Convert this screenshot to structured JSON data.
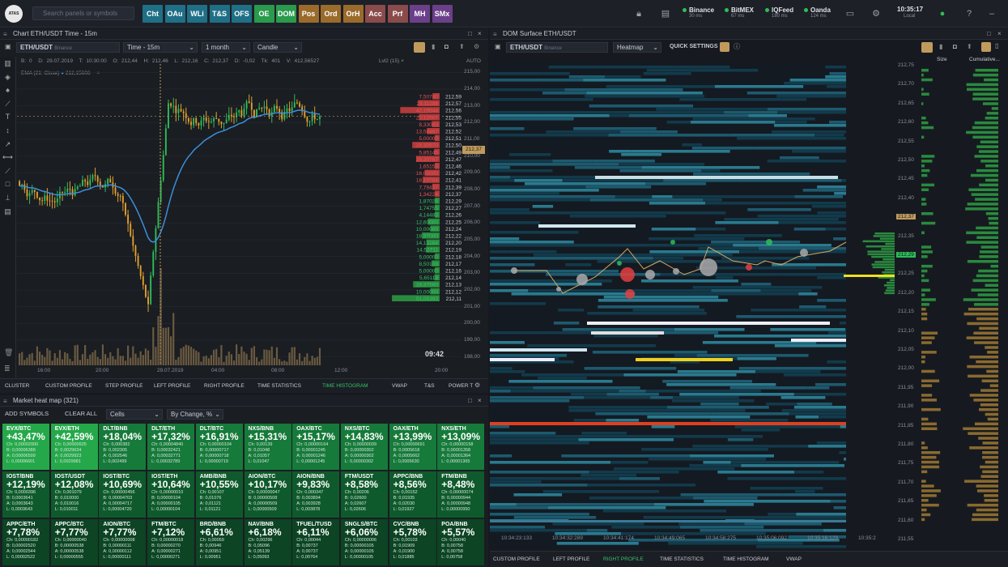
{
  "topbar": {
    "logo": "ATAS",
    "search_placeholder": "Search panels or symbols",
    "workspace_buttons": [
      {
        "label": "Cht",
        "color": "#1f6f86"
      },
      {
        "label": "OAu",
        "color": "#1f6f86"
      },
      {
        "label": "WLi",
        "color": "#1f6f86"
      },
      {
        "label": "T&S",
        "color": "#1f6f86"
      },
      {
        "label": "OFS",
        "color": "#1f6f86"
      },
      {
        "label": "OE",
        "color": "#2a9a4c"
      },
      {
        "label": "DOM",
        "color": "#2a9a4c"
      },
      {
        "label": "Pos",
        "color": "#9a6b2a"
      },
      {
        "label": "Ord",
        "color": "#9a6b2a"
      },
      {
        "label": "OrH",
        "color": "#9a6b2a"
      },
      {
        "label": "Acc",
        "color": "#8a4b4b"
      },
      {
        "label": "Prf",
        "color": "#8a4b4b"
      },
      {
        "label": "MH",
        "color": "#6b3f8a"
      },
      {
        "label": "SMx",
        "color": "#6b3f8a"
      }
    ],
    "feeds": [
      {
        "name": "Binance",
        "ping": "30 ms"
      },
      {
        "name": "BitMEX",
        "ping": "67 ms"
      },
      {
        "name": "IQFeed",
        "ping": "180 ms"
      },
      {
        "name": "Oanda",
        "ping": "124 ms"
      }
    ],
    "time": "10:35:17",
    "time_label": "Local"
  },
  "chart": {
    "title": "Chart ETH/USDT Time - 15m",
    "symbol": "ETH/USDT",
    "exchange": "Binance",
    "timeframe": "Time - 15m",
    "period": "1 month",
    "chart_type": "Candle",
    "ohlc": {
      "b": "B: 0",
      "date": "D: 29.07.2019",
      "time": "T: 10:30:00",
      "o": "O: 212,44",
      "h": "H: 212,46",
      "l": "L: 212,16",
      "c": "C: 212,37",
      "d": "D: -0,02",
      "tk": "Tk: 401",
      "v": "V: 412,56527"
    },
    "ema_label": "EMA (21: Close)",
    "ema_value": "212,15606",
    "lvl_label": "Lvl2 (15)",
    "auto": "AUTO",
    "x_ticks": [
      "16:00",
      "20:00",
      "29.07.2019",
      "04:00",
      "08:00",
      "12:00",
      "20:00"
    ],
    "y_ticks": [
      "215,00",
      "214,00",
      "213,00",
      "212,00",
      "211,00",
      "210,00",
      "209,00",
      "208,00",
      "207,00",
      "206,00",
      "205,00",
      "204,00",
      "203,00",
      "202,00",
      "201,00",
      "200,00",
      "199,00",
      "198,00"
    ],
    "current_price": "212,37",
    "timer": "09:42",
    "asks": [
      [
        "7,50780",
        "212,59"
      ],
      [
        "23,11288",
        "212,57"
      ],
      [
        "42,19544",
        "212,56"
      ],
      [
        "22,12507",
        "212,55"
      ],
      [
        "8,33000",
        "212,53"
      ],
      [
        "13,58467",
        "212,52"
      ],
      [
        "5,00000",
        "212,51"
      ],
      [
        "29,30570",
        "212,50"
      ],
      [
        "5,85145",
        "212,49"
      ],
      [
        "25,20767",
        "212,47"
      ],
      [
        "1,65153",
        "212,46"
      ],
      [
        "16,00000",
        "212,42"
      ],
      [
        "18,10784",
        "212,41"
      ],
      [
        "7,79457",
        "212,39"
      ],
      [
        "1,34224",
        "212,37"
      ]
    ],
    "bids": [
      [
        "1,87028",
        "212,29"
      ],
      [
        "1,74755",
        "212,27"
      ],
      [
        "4,14483",
        "212,26"
      ],
      [
        "12,60000",
        "212,25"
      ],
      [
        "10,00000",
        "212,24"
      ],
      [
        "18,97000",
        "212,22"
      ],
      [
        "14,13164",
        "212,20"
      ],
      [
        "14,52711",
        "212,19"
      ],
      [
        "5,00000",
        "212,18"
      ],
      [
        "8,50109",
        "212,17"
      ],
      [
        "5,00000",
        "212,16"
      ],
      [
        "5,65118",
        "212,14"
      ],
      [
        "28,37590",
        "212,13"
      ],
      [
        "10,00000",
        "212,12"
      ],
      [
        "51,05393",
        "212,11"
      ]
    ],
    "bottom_tabs": [
      "CLUSTER",
      "CUSTOM PROFILE",
      "STEP PROFILE",
      "LEFT PROFILE",
      "RIGHT PROFILE",
      "TIME STATISTICS",
      "TIME HISTOGRAM",
      "VWAP",
      "T&S",
      "POWER T"
    ]
  },
  "dom": {
    "title": "DOM Surface ETH/USDT",
    "symbol": "ETH/USDT",
    "exchange": "Binance",
    "mode": "Heatmap",
    "quick": "QUICK SETTINGS",
    "col_size": "Size",
    "col_cumulative": "Cumulative...",
    "prices": [
      "212,75",
      "212,70",
      "212,65",
      "212,60",
      "212,55",
      "212,50",
      "212,45",
      "212,40",
      "212,37",
      "212,35",
      "212,29",
      "212,25",
      "212,20",
      "212,15",
      "212,10",
      "212,05",
      "212,00",
      "211,95",
      "211,90",
      "211,85",
      "211,80",
      "211,75",
      "211,70",
      "211,65",
      "211,60",
      "211,55"
    ],
    "times": [
      "10:34:23:133",
      "10:34:32:289",
      "10:34:41:174",
      "10:34:49:065",
      "10:34:58:275",
      "10:35:06:092",
      "10:35:16:129",
      "10:35:2"
    ],
    "bottom_tabs": [
      "CUSTOM PROFILE",
      "LEFT PROFILE",
      "RIGHT PROFILE",
      "TIME STATISTICS",
      "TIME HISTOGRAM",
      "VWAP"
    ]
  },
  "heatmap": {
    "title": "Market heat map (321)",
    "add": "ADD SYMBOLS",
    "clear": "CLEAR ALL",
    "view": "Cells",
    "sort": "By Change, %",
    "tiles": [
      {
        "s": "EVX/BTC",
        "c": "+43,47%",
        "m": [
          "Ch: 0,00002000",
          "B: 0,00006388",
          "A: 0,00006599",
          "L: 0,00006601"
        ]
      },
      {
        "s": "EVX/ETH",
        "c": "+42,59%",
        "m": [
          "Ch: 0,00000925",
          "B: 0,0029634",
          "A: 0,0029923",
          "L: 0,0029981"
        ]
      },
      {
        "s": "DLT/BNB",
        "c": "+18,04%",
        "m": [
          "Ch: 0,000382",
          "B: 0,002305",
          "A: 0,002546",
          "L: 0,002499"
        ]
      },
      {
        "s": "DLT/ETH",
        "c": "+17,32%",
        "m": [
          "Ch: 0,00004840",
          "B: 0,00032421",
          "A: 0,00032771",
          "L: 0,00032789"
        ]
      },
      {
        "s": "DLT/BTC",
        "c": "+16,91%",
        "m": [
          "Ch: 0,00000104",
          "B: 0,00000717",
          "A: 0,00000718",
          "L: 0,00000719"
        ]
      },
      {
        "s": "NXS/BNB",
        "c": "+15,31%",
        "m": [
          "Ch: 0,00139",
          "B: 0,01048",
          "A: 0,01057",
          "L: 0,01047"
        ]
      },
      {
        "s": "OAX/BTC",
        "c": "+15,17%",
        "m": [
          "Ch: 0,00000164",
          "B: 0,00001245",
          "A: 0,00001246",
          "L: 0,00001245"
        ]
      },
      {
        "s": "NXS/BTC",
        "c": "+14,83%",
        "m": [
          "Ch: 0,00000039",
          "B: 0,00000302",
          "A: 0,00000302",
          "L: 0,00000302"
        ]
      },
      {
        "s": "OAX/ETH",
        "c": "+13,99%",
        "m": [
          "Ch: 0,00000691",
          "B: 0,0005618",
          "A: 0,0005662",
          "L: 0,0005630"
        ]
      },
      {
        "s": "NXS/ETH",
        "c": "+13,09%",
        "m": [
          "Ch: 0,00000158",
          "B: 0,00001358",
          "A: 0,00001364",
          "L: 0,00001365"
        ]
      },
      {
        "s": "IOST/BNB",
        "c": "+12,19%",
        "m": [
          "Ch: 0,0000396",
          "B: 0,0003641",
          "A: 0,0003643",
          "L: 0,0003643"
        ]
      },
      {
        "s": "IOST/USDT",
        "c": "+12,08%",
        "m": [
          "Ch: 0,001079",
          "B: 0,010000",
          "A: 0,010016",
          "L: 0,010011"
        ]
      },
      {
        "s": "IOST/BTC",
        "c": "+10,69%",
        "m": [
          "Ch: 0,00000456",
          "B: 0,00004703",
          "A: 0,00004717",
          "L: 0,00004720"
        ]
      },
      {
        "s": "IOST/ETH",
        "c": "+10,64%",
        "m": [
          "Ch: 0,00000010",
          "B: 0,00000104",
          "A: 0,00000105",
          "L: 0,00000104"
        ]
      },
      {
        "s": "AMB/BNB",
        "c": "+10,55%",
        "m": [
          "Ch: 0,00107",
          "B: 0,01076",
          "A: 0,01121",
          "L: 0,01121"
        ]
      },
      {
        "s": "AION/BTC",
        "c": "+10,17%",
        "m": [
          "Ch: 0,00000047",
          "B: 0,00000508",
          "A: 0,00000509",
          "L: 0,00000509"
        ]
      },
      {
        "s": "AION/BNB",
        "c": "+9,83%",
        "m": [
          "Ch: 0,000347",
          "B: 0,003894",
          "A: 0,003928",
          "L: 0,003878"
        ]
      },
      {
        "s": "FTM/USDT",
        "c": "+8,58%",
        "m": [
          "Ch: 0,00206",
          "B: 0,02600",
          "A: 0,02607",
          "L: 0,02606"
        ]
      },
      {
        "s": "APPC/BNB",
        "c": "+8,56%",
        "m": [
          "Ch: 0,00152",
          "B: 0,01935",
          "A: 0,02030",
          "L: 0,01927"
        ]
      },
      {
        "s": "FTM/BNB",
        "c": "+8,48%",
        "m": [
          "Ch: 0,00000074",
          "B: 0,00000944",
          "A: 0,00000948",
          "L: 0,00000950"
        ]
      },
      {
        "s": "APPC/ETH",
        "c": "+7,78%",
        "m": [
          "Ch: 0,00000182",
          "B: 0,00002520",
          "A: 0,00002544",
          "L: 0,00002522"
        ]
      },
      {
        "s": "APPC/BTC",
        "c": "+7,77%",
        "m": [
          "Ch: 0,00000040",
          "B: 0,00000538",
          "A: 0,00000538",
          "L: 0,00000555"
        ]
      },
      {
        "s": "AION/BTC",
        "c": "+7,77%",
        "m": [
          "Ch: 0,00000008",
          "B: 0,00000111",
          "A: 0,00000112",
          "L: 0,00000111"
        ]
      },
      {
        "s": "FTM/BTC",
        "c": "+7,12%",
        "m": [
          "Ch: 0,00000018",
          "B: 0,00000270",
          "A: 0,00000271",
          "L: 0,00000271"
        ]
      },
      {
        "s": "BRD/BNB",
        "c": "+6,61%",
        "m": [
          "Ch: 0,00059",
          "B: 0,00946",
          "A: 0,00951",
          "L: 0,00951"
        ]
      },
      {
        "s": "NAV/BNB",
        "c": "+6,18%",
        "m": [
          "Ch: 0,00296",
          "B: 0,05096",
          "A: 0,05139",
          "L: 0,05093"
        ]
      },
      {
        "s": "TFUEL/TUSD",
        "c": "+6,11%",
        "m": [
          "Ch: 0,00044",
          "B: 0,00737",
          "A: 0,00737",
          "L: 0,00764"
        ]
      },
      {
        "s": "SNGLS/BTC",
        "c": "+6,06%",
        "m": [
          "Ch: 0,00000006",
          "B: 0,00000105",
          "A: 0,00000105",
          "L: 0,00000105"
        ]
      },
      {
        "s": "CVC/BNB",
        "c": "+5,78%",
        "m": [
          "Ch: 0,00103",
          "B: 0,01909",
          "A: 0,01900",
          "L: 0,01885"
        ]
      },
      {
        "s": "POA/BNB",
        "c": "+5,57%",
        "m": [
          "Ch: 0,00040",
          "B: 0,00758",
          "A: 0,00758",
          "L: 0,00758"
        ]
      }
    ]
  }
}
